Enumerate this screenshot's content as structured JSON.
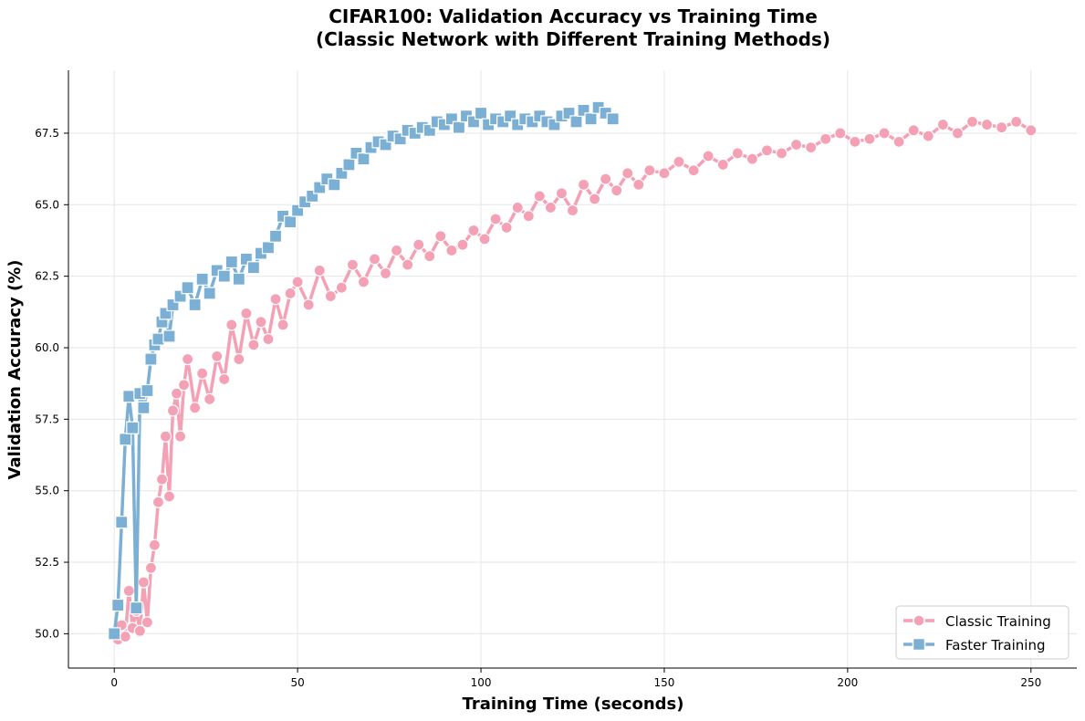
{
  "chart_data": {
    "type": "line",
    "title_line1": "CIFAR100: Validation Accuracy vs Training Time",
    "title_line2": "(Classic Network with Different Training Methods)",
    "xlabel": "Training Time (seconds)",
    "ylabel": "Validation Accuracy (%)",
    "xlim": [
      -12.5,
      262.5
    ],
    "ylim": [
      48.8,
      69.7
    ],
    "xticks": [
      0,
      50,
      100,
      150,
      200,
      250
    ],
    "yticks": [
      50.0,
      52.5,
      55.0,
      57.5,
      60.0,
      62.5,
      65.0,
      67.5
    ],
    "grid": true,
    "legend_position": "lower-right",
    "series": [
      {
        "name": "Classic Training",
        "color": "#f4a0b5",
        "marker": "circle",
        "x": [
          0,
          1,
          2,
          3,
          4,
          5,
          6,
          7,
          8,
          9,
          10,
          11,
          12,
          13,
          14,
          15,
          16,
          17,
          18,
          19,
          20,
          22,
          24,
          26,
          28,
          30,
          32,
          34,
          36,
          38,
          40,
          42,
          44,
          46,
          48,
          50,
          53,
          56,
          59,
          62,
          65,
          68,
          71,
          74,
          77,
          80,
          83,
          86,
          89,
          92,
          95,
          98,
          101,
          104,
          107,
          110,
          113,
          116,
          119,
          122,
          125,
          128,
          131,
          134,
          137,
          140,
          143,
          146,
          150,
          154,
          158,
          162,
          166,
          170,
          174,
          178,
          182,
          186,
          190,
          194,
          198,
          202,
          206,
          210,
          214,
          218,
          222,
          226,
          230,
          234,
          238,
          242,
          246,
          250
        ],
        "y": [
          50.0,
          49.8,
          50.3,
          49.9,
          51.5,
          50.2,
          50.8,
          50.1,
          51.8,
          50.4,
          52.3,
          53.1,
          54.6,
          55.4,
          56.9,
          54.8,
          57.8,
          58.4,
          56.9,
          58.7,
          59.6,
          57.9,
          59.1,
          58.2,
          59.7,
          58.9,
          60.8,
          59.6,
          61.2,
          60.1,
          60.9,
          60.3,
          61.7,
          60.8,
          61.9,
          62.3,
          61.5,
          62.7,
          61.8,
          62.1,
          62.9,
          62.3,
          63.1,
          62.6,
          63.4,
          62.9,
          63.6,
          63.2,
          63.9,
          63.4,
          63.6,
          64.1,
          63.8,
          64.5,
          64.2,
          64.9,
          64.6,
          65.3,
          64.9,
          65.4,
          64.8,
          65.7,
          65.2,
          65.9,
          65.5,
          66.1,
          65.7,
          66.2,
          66.1,
          66.5,
          66.2,
          66.7,
          66.4,
          66.8,
          66.6,
          66.9,
          66.8,
          67.1,
          67.0,
          67.3,
          67.5,
          67.2,
          67.3,
          67.5,
          67.2,
          67.6,
          67.4,
          67.8,
          67.5,
          67.9,
          67.8,
          67.7,
          67.9,
          67.6
        ]
      },
      {
        "name": "Faster Training",
        "color": "#7bafd4",
        "marker": "square",
        "x": [
          0,
          1,
          2,
          3,
          4,
          5,
          6,
          7,
          8,
          9,
          10,
          11,
          12,
          13,
          14,
          15,
          16,
          18,
          20,
          22,
          24,
          26,
          28,
          30,
          32,
          34,
          36,
          38,
          40,
          42,
          44,
          46,
          48,
          50,
          52,
          54,
          56,
          58,
          60,
          62,
          64,
          66,
          68,
          70,
          72,
          74,
          76,
          78,
          80,
          82,
          84,
          86,
          88,
          90,
          92,
          94,
          96,
          98,
          100,
          102,
          104,
          106,
          108,
          110,
          112,
          114,
          116,
          118,
          120,
          122,
          124,
          126,
          128,
          130,
          132,
          134,
          136
        ],
        "y": [
          50.0,
          51.0,
          53.9,
          56.8,
          58.3,
          57.2,
          50.9,
          58.4,
          57.9,
          58.5,
          59.6,
          60.1,
          60.3,
          60.9,
          61.2,
          60.4,
          61.5,
          61.8,
          62.1,
          61.5,
          62.4,
          61.9,
          62.7,
          62.5,
          63.0,
          62.4,
          63.1,
          62.8,
          63.3,
          63.5,
          63.9,
          64.6,
          64.4,
          64.8,
          65.1,
          65.3,
          65.6,
          65.9,
          65.7,
          66.1,
          66.4,
          66.8,
          66.6,
          67.0,
          67.2,
          67.1,
          67.4,
          67.3,
          67.6,
          67.5,
          67.7,
          67.6,
          67.9,
          67.8,
          68.0,
          67.7,
          68.1,
          67.9,
          68.2,
          67.8,
          68.0,
          67.9,
          68.1,
          67.8,
          68.0,
          67.9,
          68.1,
          67.9,
          67.8,
          68.1,
          68.2,
          67.9,
          68.3,
          68.0,
          68.4,
          68.2,
          68.0
        ]
      }
    ]
  }
}
